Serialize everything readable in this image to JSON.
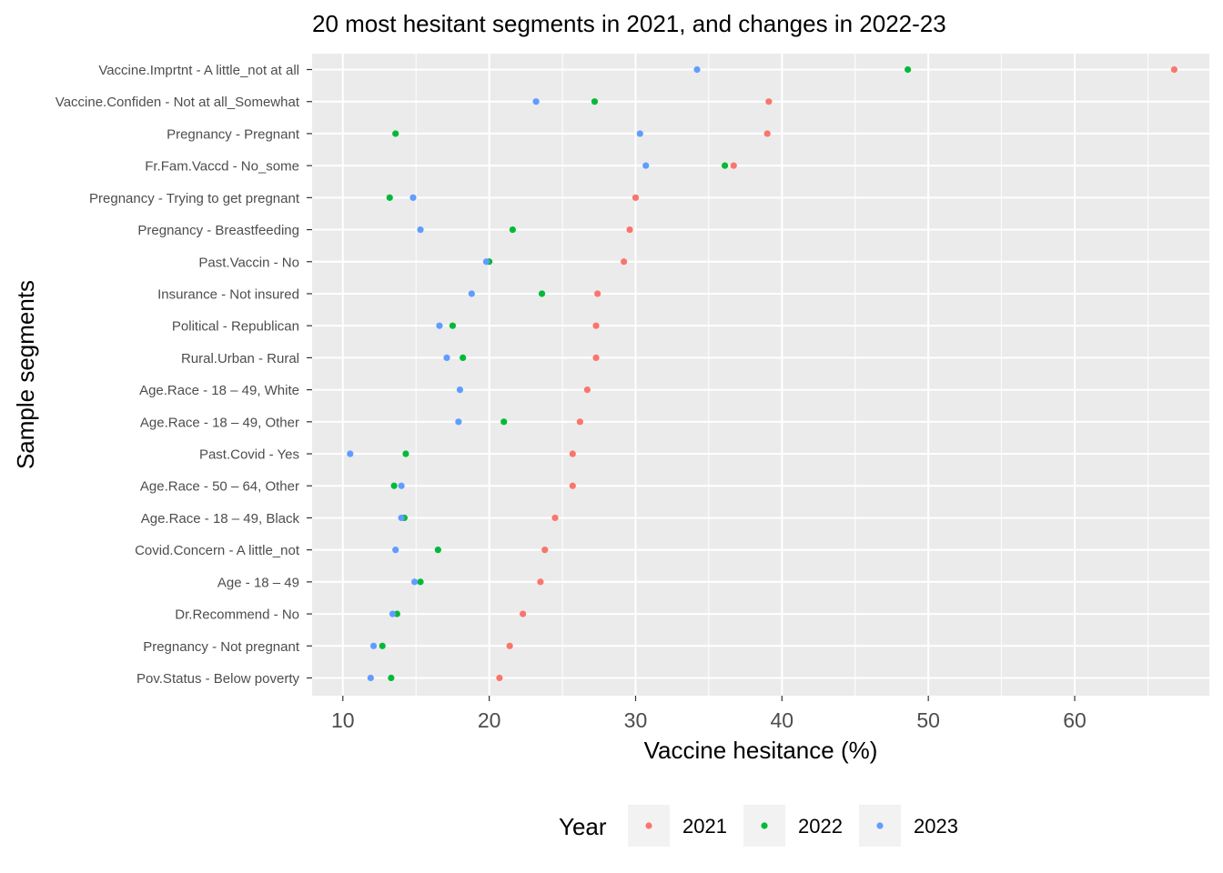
{
  "chart_data": {
    "type": "scatter",
    "title": "20 most hesitant segments in 2021, and changes in 2022-23",
    "xlabel": "Vaccine hesitance (%)",
    "ylabel": "Sample segments",
    "xlim": [
      7.9,
      69.2
    ],
    "xticks": [
      10,
      20,
      30,
      40,
      50,
      60
    ],
    "grid": true,
    "legend": {
      "title": "Year",
      "position": "bottom"
    },
    "categories": [
      "Vaccine.Imprtnt - A little_not at all",
      "Vaccine.Confiden - Not at all_Somewhat",
      "Pregnancy - Pregnant",
      "Fr.Fam.Vaccd - No_some",
      "Pregnancy - Trying to get pregnant",
      "Pregnancy - Breastfeeding",
      "Past.Vaccin - No",
      "Insurance - Not insured",
      "Political - Republican",
      "Rural.Urban - Rural",
      "Age.Race - 18 – 49, White",
      "Age.Race - 18 – 49, Other",
      "Past.Covid - Yes",
      "Age.Race - 50 – 64, Other",
      "Age.Race - 18 – 49, Black",
      "Covid.Concern - A little_not",
      "Age - 18 – 49",
      "Dr.Recommend - No",
      "Pregnancy - Not pregnant",
      "Pov.Status - Below poverty"
    ],
    "series": [
      {
        "name": "2021",
        "color": "#F8766D",
        "values": [
          66.8,
          39.1,
          39.0,
          36.7,
          30.0,
          29.6,
          29.2,
          27.4,
          27.3,
          27.3,
          26.7,
          26.2,
          25.7,
          25.7,
          24.5,
          23.8,
          23.5,
          22.3,
          21.4,
          20.7
        ]
      },
      {
        "name": "2022",
        "color": "#00BA38",
        "values": [
          48.6,
          27.2,
          13.6,
          36.1,
          13.2,
          21.6,
          20.0,
          23.6,
          17.5,
          18.2,
          null,
          21.0,
          14.3,
          13.5,
          14.2,
          16.5,
          15.3,
          13.7,
          12.7,
          13.3
        ]
      },
      {
        "name": "2023",
        "color": "#619CFF",
        "values": [
          34.2,
          23.2,
          30.3,
          30.7,
          14.8,
          15.3,
          19.8,
          18.8,
          16.6,
          17.1,
          18.0,
          17.9,
          10.5,
          14.0,
          14.0,
          13.6,
          14.9,
          13.4,
          12.1,
          11.9
        ]
      }
    ]
  }
}
